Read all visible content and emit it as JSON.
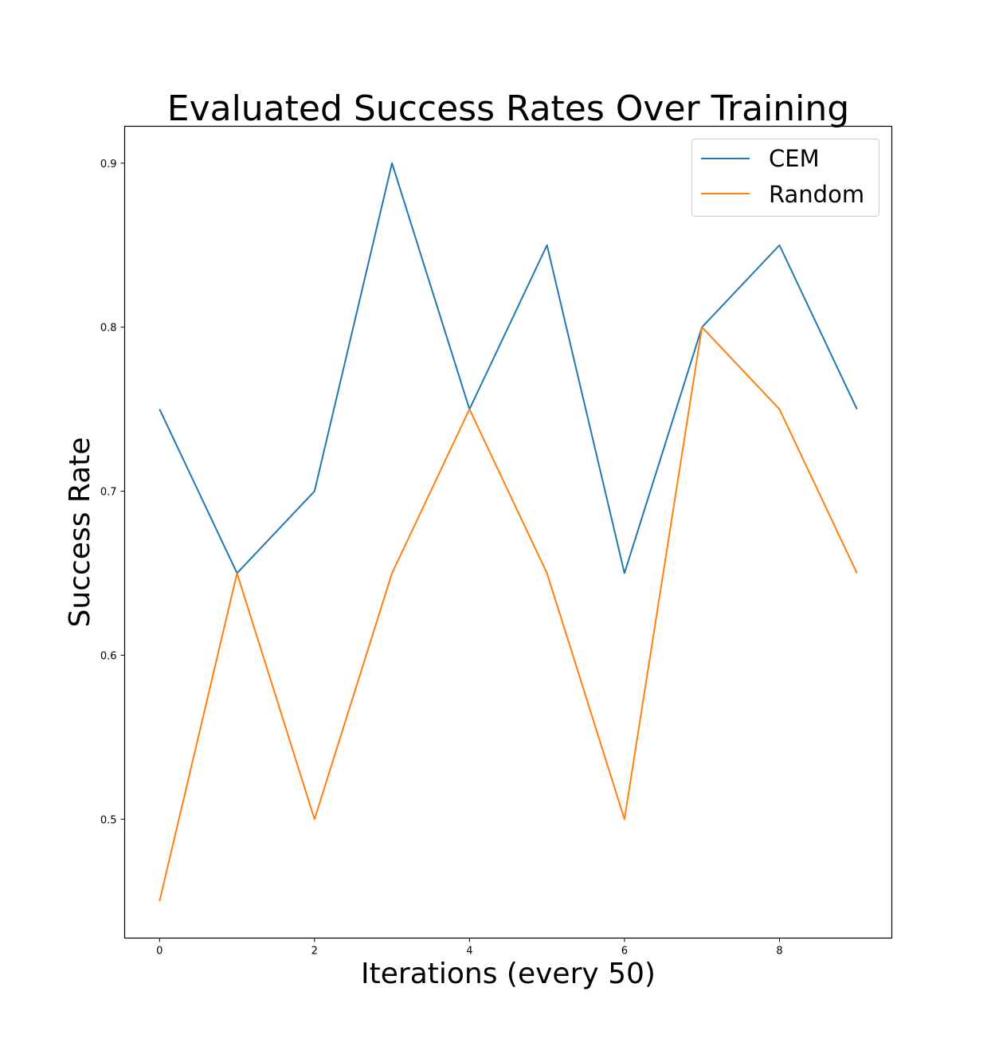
{
  "chart_data": {
    "type": "line",
    "title": "Evaluated Success Rates Over Training",
    "xlabel": "Iterations (every 50)",
    "ylabel": "Success Rate",
    "x": [
      0,
      1,
      2,
      3,
      4,
      5,
      6,
      7,
      8,
      9
    ],
    "xlim": [
      -0.45,
      9.45
    ],
    "ylim": [
      0.4275,
      0.9225
    ],
    "x_ticks": [
      0,
      2,
      4,
      6,
      8
    ],
    "y_ticks": [
      0.5,
      0.6,
      0.7,
      0.8,
      0.9
    ],
    "x_tick_labels": [
      "0",
      "2",
      "4",
      "6",
      "8"
    ],
    "y_tick_labels": [
      "0.5",
      "0.6",
      "0.7",
      "0.8",
      "0.9"
    ],
    "grid": false,
    "legend_position": "top-right",
    "series": [
      {
        "name": "CEM",
        "color": "#1f77b4",
        "values": [
          0.75,
          0.65,
          0.7,
          0.9,
          0.75,
          0.85,
          0.65,
          0.8,
          0.85,
          0.75
        ]
      },
      {
        "name": "Random",
        "color": "#ff7f0e",
        "values": [
          0.45,
          0.65,
          0.5,
          0.65,
          0.75,
          0.65,
          0.5,
          0.8,
          0.75,
          0.65
        ]
      }
    ]
  }
}
